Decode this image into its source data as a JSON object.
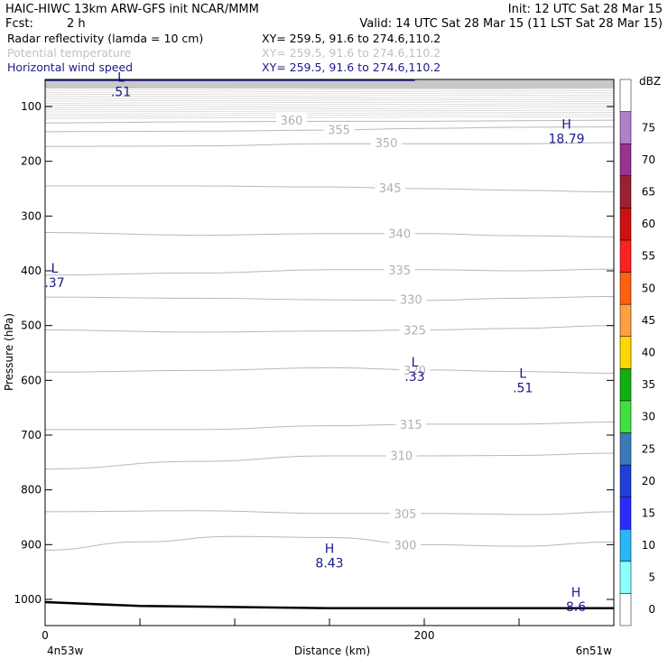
{
  "header": {
    "line1_left": "HAIC-HIWC 13km ARW-GFS init   NCAR/MMM",
    "line1_right": "Init: 12 UTC Sat 28 Mar 15",
    "fcst_label": "Fcst:",
    "fcst_value": "2 h",
    "valid": "Valid: 14 UTC Sat 28 Mar 15 (11 LST Sat 28 Mar 15)",
    "fields": [
      {
        "name": "Radar reflectivity (lamda = 10 cm)",
        "xy": "XY= 259.5, 91.6 to 274.6,110.2",
        "color": "#000000"
      },
      {
        "name": "Potential temperature",
        "xy": "XY= 259.5, 91.6 to 274.6,110.2",
        "color": "#c0c0c0"
      },
      {
        "name": "Horizontal wind speed",
        "xy": "XY= 259.5, 91.6 to 274.6,110.2",
        "color": "#1a1a8c"
      }
    ]
  },
  "chart_data": {
    "type": "cross-section contour",
    "xlabel": "Distance (km)",
    "ylabel": "Pressure (hPa)",
    "xlim": [
      0,
      300
    ],
    "ylim_pressure": [
      1050,
      50
    ],
    "x_ticks": [
      {
        "value": 200,
        "label": "200"
      }
    ],
    "x_minor_ticks": [
      0,
      50,
      100,
      150,
      200,
      250,
      300
    ],
    "x_end_labels": {
      "left": "4n53w",
      "left_label": "0",
      "right": "6n51w"
    },
    "y_ticks": [
      100,
      200,
      300,
      400,
      500,
      600,
      700,
      800,
      900,
      1000
    ],
    "colorbar": {
      "unit": "dBZ",
      "levels": [
        0,
        5,
        10,
        15,
        20,
        25,
        30,
        35,
        40,
        45,
        50,
        55,
        60,
        65,
        70,
        75
      ],
      "colors": [
        "#ffffff",
        "#8cffff",
        "#29b6f6",
        "#2b2bff",
        "#1e3fd9",
        "#3a7ab8",
        "#40e040",
        "#10b010",
        "#ffd700",
        "#ffa040",
        "#ff6010",
        "#ff2020",
        "#d01010",
        "#9b2030",
        "#9a3090",
        "#b080c8",
        "#ffffff"
      ]
    },
    "theta_contours": [
      {
        "label": "300",
        "pts": [
          [
            0,
            910
          ],
          [
            50,
            895
          ],
          [
            100,
            885
          ],
          [
            150,
            887
          ],
          [
            200,
            900
          ],
          [
            250,
            903
          ],
          [
            300,
            895
          ]
        ],
        "label_at": [
          190,
          900
        ]
      },
      {
        "label": "305",
        "pts": [
          [
            0,
            840
          ],
          [
            80,
            838
          ],
          [
            150,
            843
          ],
          [
            200,
            843
          ],
          [
            260,
            845
          ],
          [
            300,
            840
          ]
        ],
        "label_at": [
          190,
          843
        ]
      },
      {
        "label": "310",
        "pts": [
          [
            0,
            762
          ],
          [
            80,
            748
          ],
          [
            150,
            738
          ],
          [
            200,
            738
          ],
          [
            250,
            737
          ],
          [
            300,
            733
          ]
        ],
        "label_at": [
          188,
          737
        ]
      },
      {
        "label": "315",
        "pts": [
          [
            0,
            690
          ],
          [
            80,
            690
          ],
          [
            150,
            683
          ],
          [
            200,
            680
          ],
          [
            250,
            680
          ],
          [
            300,
            676
          ]
        ],
        "label_at": [
          193,
          680
        ]
      },
      {
        "label": "320",
        "pts": [
          [
            0,
            585
          ],
          [
            80,
            582
          ],
          [
            150,
            577
          ],
          [
            200,
            581
          ],
          [
            250,
            584
          ],
          [
            300,
            587
          ]
        ],
        "label_at": [
          195,
          581
        ]
      },
      {
        "label": "325",
        "pts": [
          [
            0,
            508
          ],
          [
            80,
            512
          ],
          [
            150,
            510
          ],
          [
            200,
            508
          ],
          [
            250,
            505
          ],
          [
            300,
            500
          ]
        ],
        "label_at": [
          195,
          508
        ]
      },
      {
        "label": "330",
        "pts": [
          [
            0,
            448
          ],
          [
            80,
            450
          ],
          [
            150,
            453
          ],
          [
            200,
            454
          ],
          [
            250,
            450
          ],
          [
            300,
            447
          ]
        ],
        "label_at": [
          193,
          452
        ]
      },
      {
        "label": "335",
        "pts": [
          [
            0,
            408
          ],
          [
            80,
            404
          ],
          [
            150,
            398
          ],
          [
            200,
            398
          ],
          [
            250,
            400
          ],
          [
            300,
            397
          ]
        ],
        "label_at": [
          187,
          398
        ]
      },
      {
        "label": "340",
        "pts": [
          [
            0,
            330
          ],
          [
            80,
            335
          ],
          [
            150,
            332
          ],
          [
            200,
            332
          ],
          [
            250,
            336
          ],
          [
            300,
            338
          ]
        ],
        "label_at": [
          187,
          332
        ]
      },
      {
        "label": "345",
        "pts": [
          [
            0,
            245
          ],
          [
            80,
            245
          ],
          [
            150,
            247
          ],
          [
            200,
            250
          ],
          [
            250,
            253
          ],
          [
            300,
            256
          ]
        ],
        "label_at": [
          182,
          248
        ]
      },
      {
        "label": "350",
        "pts": [
          [
            0,
            173
          ],
          [
            80,
            172
          ],
          [
            150,
            168
          ],
          [
            200,
            168
          ],
          [
            250,
            168
          ],
          [
            300,
            166
          ]
        ],
        "label_at": [
          180,
          166
        ]
      },
      {
        "label": "355",
        "pts": [
          [
            0,
            146
          ],
          [
            80,
            145
          ],
          [
            150,
            143
          ],
          [
            200,
            140
          ],
          [
            250,
            138
          ],
          [
            300,
            137
          ]
        ],
        "label_at": [
          155,
          142
        ]
      },
      {
        "label": "360",
        "pts": [
          [
            0,
            130
          ],
          [
            80,
            128
          ],
          [
            150,
            127
          ],
          [
            200,
            127
          ],
          [
            250,
            126
          ],
          [
            300,
            125
          ]
        ],
        "label_at": [
          130,
          125
        ]
      }
    ],
    "wind_extrema": [
      {
        "type": "L",
        "value": ".51",
        "x": 40,
        "p": 60
      },
      {
        "type": "H",
        "value": "18.79",
        "x": 275,
        "p": 145
      },
      {
        "type": "L",
        "value": ".37",
        "x": 5,
        "p": 408
      },
      {
        "type": "L",
        "value": ".33",
        "x": 195,
        "p": 580
      },
      {
        "type": "L",
        "value": ".51",
        "x": 252,
        "p": 600
      },
      {
        "type": "H",
        "value": "8.43",
        "x": 150,
        "p": 920
      },
      {
        "type": "H",
        "value": "8.6",
        "x": 280,
        "p": 1000
      }
    ],
    "terrain_p": [
      [
        0,
        1005
      ],
      [
        50,
        1012
      ],
      [
        150,
        1016
      ],
      [
        300,
        1016
      ]
    ]
  }
}
